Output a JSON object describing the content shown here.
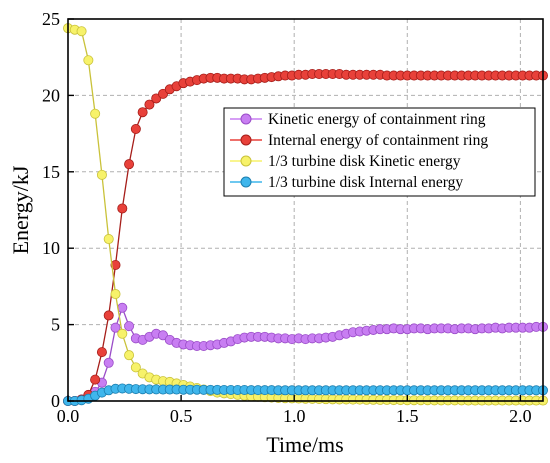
{
  "chart_data": {
    "type": "line",
    "xlabel": "Time/ms",
    "ylabel": "Energy/kJ",
    "xlim": [
      0,
      2.1
    ],
    "ylim": [
      0,
      25
    ],
    "xticks": [
      "0.0",
      "0.5",
      "1.0",
      "1.5",
      "2.0"
    ],
    "xtick_values": [
      0,
      0.5,
      1.0,
      1.5,
      2.0
    ],
    "yticks": [
      "0",
      "5",
      "10",
      "15",
      "20",
      "25"
    ],
    "ytick_values": [
      0,
      5,
      10,
      15,
      20,
      25
    ],
    "grid": true,
    "legend_position": "upper-right",
    "x": [
      0.0,
      0.03,
      0.06,
      0.09,
      0.12,
      0.15,
      0.18,
      0.21,
      0.24,
      0.27,
      0.3,
      0.33,
      0.36,
      0.39,
      0.42,
      0.45,
      0.48,
      0.51,
      0.54,
      0.57,
      0.6,
      0.63,
      0.66,
      0.69,
      0.72,
      0.75,
      0.78,
      0.81,
      0.84,
      0.87,
      0.9,
      0.93,
      0.96,
      0.99,
      1.02,
      1.05,
      1.08,
      1.11,
      1.14,
      1.17,
      1.2,
      1.23,
      1.26,
      1.29,
      1.32,
      1.35,
      1.38,
      1.41,
      1.44,
      1.47,
      1.5,
      1.53,
      1.56,
      1.59,
      1.62,
      1.65,
      1.68,
      1.71,
      1.74,
      1.77,
      1.8,
      1.83,
      1.86,
      1.89,
      1.92,
      1.95,
      1.98,
      2.01,
      2.04,
      2.07,
      2.1
    ],
    "series": [
      {
        "name": "Kinetic energy of containment ring",
        "color": "#c87ef2",
        "edge": "#9a4cc8",
        "values": [
          0.0,
          0.0,
          0.1,
          0.3,
          0.6,
          1.2,
          2.5,
          4.8,
          6.1,
          4.9,
          4.1,
          4.0,
          4.2,
          4.4,
          4.3,
          4.0,
          3.8,
          3.7,
          3.65,
          3.6,
          3.6,
          3.65,
          3.7,
          3.8,
          3.9,
          4.05,
          4.15,
          4.2,
          4.2,
          4.2,
          4.15,
          4.1,
          4.1,
          4.05,
          4.1,
          4.05,
          4.1,
          4.1,
          4.15,
          4.2,
          4.3,
          4.4,
          4.5,
          4.55,
          4.6,
          4.65,
          4.7,
          4.7,
          4.75,
          4.7,
          4.7,
          4.75,
          4.75,
          4.7,
          4.75,
          4.75,
          4.75,
          4.7,
          4.75,
          4.75,
          4.7,
          4.75,
          4.75,
          4.8,
          4.75,
          4.8,
          4.8,
          4.8,
          4.8,
          4.85,
          4.85
        ]
      },
      {
        "name": "Internal energy of containment ring",
        "color": "#e8413a",
        "edge": "#a61e1a",
        "values": [
          0.0,
          0.0,
          0.1,
          0.4,
          1.4,
          3.2,
          5.6,
          8.9,
          12.6,
          15.5,
          17.8,
          18.9,
          19.4,
          19.8,
          20.1,
          20.4,
          20.6,
          20.8,
          20.9,
          21.0,
          21.1,
          21.15,
          21.15,
          21.1,
          21.1,
          21.1,
          21.05,
          21.05,
          21.1,
          21.15,
          21.2,
          21.25,
          21.3,
          21.3,
          21.35,
          21.35,
          21.4,
          21.4,
          21.4,
          21.4,
          21.4,
          21.35,
          21.35,
          21.35,
          21.35,
          21.35,
          21.35,
          21.3,
          21.3,
          21.3,
          21.3,
          21.3,
          21.3,
          21.3,
          21.3,
          21.3,
          21.3,
          21.3,
          21.3,
          21.3,
          21.3,
          21.3,
          21.3,
          21.3,
          21.3,
          21.3,
          21.3,
          21.3,
          21.3,
          21.3,
          21.3
        ]
      },
      {
        "name": "1/3 turbine disk Kinetic energy",
        "color": "#f7f26a",
        "edge": "#c9c23a",
        "values": [
          24.4,
          24.3,
          24.2,
          22.3,
          18.8,
          14.8,
          10.6,
          7.0,
          4.4,
          3.0,
          2.2,
          1.8,
          1.55,
          1.4,
          1.3,
          1.25,
          1.15,
          1.05,
          0.95,
          0.85,
          0.75,
          0.65,
          0.55,
          0.5,
          0.45,
          0.4,
          0.35,
          0.3,
          0.28,
          0.25,
          0.22,
          0.2,
          0.18,
          0.17,
          0.16,
          0.15,
          0.14,
          0.13,
          0.12,
          0.11,
          0.1,
          0.1,
          0.09,
          0.09,
          0.08,
          0.08,
          0.07,
          0.07,
          0.06,
          0.06,
          0.05,
          0.05,
          0.05,
          0.05,
          0.04,
          0.04,
          0.04,
          0.04,
          0.04,
          0.03,
          0.03,
          0.03,
          0.03,
          0.03,
          0.03,
          0.03,
          0.03,
          0.03,
          0.03,
          0.03,
          0.03
        ]
      },
      {
        "name": "1/3 turbine disk Internal energy",
        "color": "#3fb6ec",
        "edge": "#1c7fb0",
        "values": [
          0.0,
          0.0,
          0.05,
          0.15,
          0.35,
          0.55,
          0.7,
          0.8,
          0.82,
          0.8,
          0.78,
          0.77,
          0.76,
          0.76,
          0.75,
          0.75,
          0.75,
          0.74,
          0.74,
          0.74,
          0.73,
          0.73,
          0.73,
          0.72,
          0.72,
          0.72,
          0.72,
          0.71,
          0.71,
          0.71,
          0.71,
          0.7,
          0.7,
          0.7,
          0.7,
          0.7,
          0.7,
          0.7,
          0.7,
          0.7,
          0.7,
          0.7,
          0.7,
          0.7,
          0.7,
          0.7,
          0.7,
          0.7,
          0.7,
          0.7,
          0.7,
          0.7,
          0.7,
          0.7,
          0.7,
          0.7,
          0.7,
          0.7,
          0.7,
          0.7,
          0.7,
          0.7,
          0.7,
          0.7,
          0.7,
          0.7,
          0.7,
          0.7,
          0.7,
          0.7,
          0.7
        ]
      }
    ]
  }
}
